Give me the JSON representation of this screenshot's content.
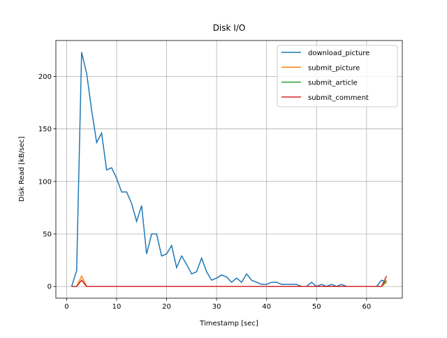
{
  "chart_data": {
    "type": "line",
    "title": "Disk I/O",
    "x_label": "Timestamp [sec]",
    "y_label": "Disk Read [kB/sec]",
    "x": [
      1,
      2,
      3,
      4,
      5,
      6,
      7,
      8,
      9,
      10,
      11,
      12,
      13,
      14,
      15,
      16,
      17,
      18,
      19,
      20,
      21,
      22,
      23,
      24,
      25,
      26,
      27,
      28,
      29,
      30,
      31,
      32,
      33,
      34,
      35,
      36,
      37,
      38,
      39,
      40,
      41,
      42,
      43,
      44,
      45,
      46,
      47,
      48,
      49,
      50,
      51,
      52,
      53,
      54,
      55,
      56,
      57,
      58,
      59,
      60,
      61,
      62,
      63,
      64
    ],
    "series": [
      {
        "name": "download_picture",
        "color": "#1f77b4",
        "values": [
          0,
          15,
          223,
          203,
          168,
          137,
          146,
          111,
          113,
          103,
          90,
          90,
          79,
          62,
          77,
          31,
          50,
          50,
          29,
          31,
          39,
          18,
          29,
          21,
          12,
          14,
          27,
          14,
          6,
          8,
          11,
          9,
          4,
          8,
          4,
          12,
          6,
          4,
          2,
          2,
          4,
          4,
          2,
          2,
          2,
          2,
          0,
          0,
          4,
          0,
          2,
          0,
          2,
          0,
          2,
          0,
          0,
          0,
          0,
          0,
          0,
          0,
          6,
          4
        ]
      },
      {
        "name": "submit_picture",
        "color": "#ff7f0e",
        "values": [
          0,
          0,
          10,
          0,
          0,
          0,
          0,
          0,
          0,
          0,
          0,
          0,
          0,
          0,
          0,
          0,
          0,
          0,
          0,
          0,
          0,
          0,
          0,
          0,
          0,
          0,
          0,
          0,
          0,
          0,
          0,
          0,
          0,
          0,
          0,
          0,
          0,
          0,
          0,
          0,
          0,
          0,
          0,
          0,
          0,
          0,
          0,
          0,
          0,
          0,
          0,
          0,
          0,
          0,
          0,
          0,
          0,
          0,
          0,
          0,
          0,
          0,
          0,
          4
        ]
      },
      {
        "name": "submit_article",
        "color": "#2ca02c",
        "values": [
          0,
          0,
          6,
          0,
          0,
          0,
          0,
          0,
          0,
          0,
          0,
          0,
          0,
          0,
          0,
          0,
          0,
          0,
          0,
          0,
          0,
          0,
          0,
          0,
          0,
          0,
          0,
          0,
          0,
          0,
          0,
          0,
          0,
          0,
          0,
          0,
          0,
          0,
          0,
          0,
          0,
          0,
          0,
          0,
          0,
          0,
          0,
          0,
          0,
          0,
          0,
          0,
          0,
          0,
          0,
          0,
          0,
          0,
          0,
          0,
          0,
          0,
          0,
          6
        ]
      },
      {
        "name": "submit_comment",
        "color": "#d62728",
        "values": [
          0,
          0,
          6,
          0,
          0,
          0,
          0,
          0,
          0,
          0,
          0,
          0,
          0,
          0,
          0,
          0,
          0,
          0,
          0,
          0,
          0,
          0,
          0,
          0,
          0,
          0,
          0,
          0,
          0,
          0,
          0,
          0,
          0,
          0,
          0,
          0,
          0,
          0,
          0,
          0,
          0,
          0,
          0,
          0,
          0,
          0,
          0,
          0,
          0,
          0,
          0,
          0,
          0,
          0,
          0,
          0,
          0,
          0,
          0,
          0,
          0,
          0,
          0,
          10
        ]
      }
    ],
    "xlim": [
      -2.15,
      67.15
    ],
    "ylim": [
      -11.15,
      234.15
    ],
    "xticks": [
      0,
      10,
      20,
      30,
      40,
      50,
      60
    ],
    "yticks": [
      0,
      50,
      100,
      150,
      200
    ],
    "grid": true,
    "legend": "upper right"
  }
}
